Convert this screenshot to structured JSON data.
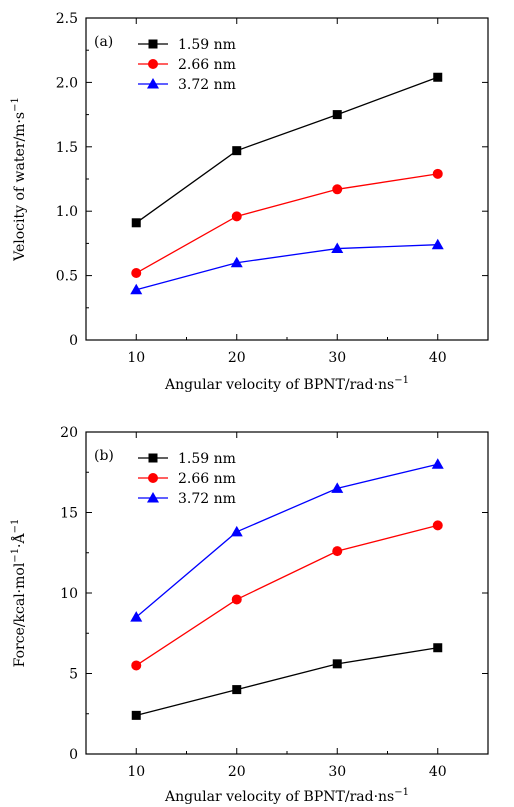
{
  "chart_data": [
    {
      "type": "line",
      "panel_label": "(a)",
      "x": [
        10,
        20,
        30,
        40
      ],
      "xlabel": "Angular velocity of BPNT/rad·ns",
      "xlabel_sup": "−1",
      "ylabel": "Velocity of water/m·s",
      "ylabel_sup": "−1",
      "xlim": [
        5,
        45
      ],
      "ylim": [
        0,
        2.5
      ],
      "xticks": [
        "10",
        "20",
        "30",
        "40"
      ],
      "yticks": [
        "0",
        "0.5",
        "1.0",
        "1.5",
        "2.0",
        "2.5"
      ],
      "legend_position": "top-left",
      "series": [
        {
          "name": "1.59 nm",
          "marker": "square",
          "color": "#000000",
          "values": [
            0.91,
            1.47,
            1.75,
            2.04
          ]
        },
        {
          "name": "2.66 nm",
          "marker": "circle",
          "color": "#ff0000",
          "values": [
            0.52,
            0.96,
            1.17,
            1.29
          ]
        },
        {
          "name": "3.72 nm",
          "marker": "triangle",
          "color": "#0000ff",
          "values": [
            0.39,
            0.6,
            0.71,
            0.74
          ]
        }
      ]
    },
    {
      "type": "line",
      "panel_label": "(b)",
      "x": [
        10,
        20,
        30,
        40
      ],
      "xlabel": "Angular velocity of BPNT/rad·ns",
      "xlabel_sup": "−1",
      "ylabel": "Force/kcal·mol",
      "ylabel_sup": "−1",
      "ylabel_tail": "·Å",
      "ylabel_tail_sup": "−1",
      "xlim": [
        5,
        45
      ],
      "ylim": [
        0,
        20
      ],
      "xticks": [
        "10",
        "20",
        "30",
        "40"
      ],
      "yticks": [
        "0",
        "5",
        "10",
        "15",
        "20"
      ],
      "legend_position": "top-left",
      "series": [
        {
          "name": "1.59 nm",
          "marker": "square",
          "color": "#000000",
          "values": [
            2.4,
            4.0,
            5.6,
            6.6
          ]
        },
        {
          "name": "2.66 nm",
          "marker": "circle",
          "color": "#ff0000",
          "values": [
            5.5,
            9.6,
            12.6,
            14.2
          ]
        },
        {
          "name": "3.72 nm",
          "marker": "triangle",
          "color": "#0000ff",
          "values": [
            8.5,
            13.8,
            16.5,
            18.0
          ]
        }
      ]
    }
  ]
}
